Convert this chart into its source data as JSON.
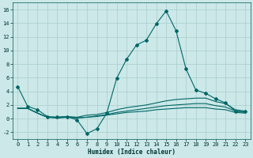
{
  "xlabel": "Humidex (Indice chaleur)",
  "bg_color": "#cce8e8",
  "grid_color": "#aacece",
  "line_color": "#006666",
  "ylim": [
    -3,
    17
  ],
  "xlim": [
    -0.5,
    23.5
  ],
  "yticks": [
    -2,
    0,
    2,
    4,
    6,
    8,
    10,
    12,
    14,
    16
  ],
  "xticks": [
    0,
    1,
    2,
    3,
    4,
    5,
    6,
    7,
    8,
    9,
    10,
    11,
    12,
    13,
    14,
    15,
    16,
    17,
    18,
    19,
    20,
    21,
    22,
    23
  ],
  "series": [
    {
      "x": [
        0,
        1,
        2,
        3,
        4,
        5,
        6,
        7,
        8,
        9,
        10,
        11,
        12,
        13,
        14,
        15,
        16,
        17,
        18,
        19,
        20,
        21,
        22,
        23
      ],
      "y": [
        4.7,
        1.8,
        1.3,
        0.3,
        0.2,
        0.3,
        -0.2,
        -2.2,
        -1.5,
        0.8,
        5.9,
        8.7,
        10.8,
        11.5,
        13.9,
        15.8,
        12.9,
        7.3,
        4.2,
        3.7,
        2.9,
        2.3,
        1.1,
        1.0
      ],
      "marker": true
    },
    {
      "x": [
        0,
        1,
        2,
        3,
        4,
        5,
        6,
        7,
        8,
        9,
        10,
        11,
        12,
        13,
        14,
        15,
        16,
        17,
        18,
        19,
        20,
        21,
        22,
        23
      ],
      "y": [
        1.5,
        1.5,
        0.8,
        0.2,
        0.2,
        0.3,
        0.2,
        0.5,
        0.6,
        0.9,
        1.3,
        1.6,
        1.8,
        2.0,
        2.3,
        2.6,
        2.8,
        2.9,
        3.0,
        3.0,
        2.5,
        2.2,
        1.3,
        1.1
      ],
      "marker": false
    },
    {
      "x": [
        0,
        1,
        2,
        3,
        4,
        5,
        6,
        7,
        8,
        9,
        10,
        11,
        12,
        13,
        14,
        15,
        16,
        17,
        18,
        19,
        20,
        21,
        22,
        23
      ],
      "y": [
        1.5,
        1.5,
        0.8,
        0.2,
        0.1,
        0.2,
        0.1,
        0.2,
        0.4,
        0.6,
        0.9,
        1.1,
        1.3,
        1.5,
        1.7,
        1.9,
        2.0,
        2.1,
        2.2,
        2.2,
        1.9,
        1.7,
        1.1,
        0.9
      ],
      "marker": false
    },
    {
      "x": [
        0,
        1,
        2,
        3,
        4,
        5,
        6,
        7,
        8,
        9,
        10,
        11,
        12,
        13,
        14,
        15,
        16,
        17,
        18,
        19,
        20,
        21,
        22,
        23
      ],
      "y": [
        1.5,
        1.5,
        0.8,
        0.2,
        0.1,
        0.2,
        0.1,
        0.2,
        0.3,
        0.5,
        0.7,
        0.9,
        1.0,
        1.1,
        1.3,
        1.4,
        1.5,
        1.6,
        1.6,
        1.6,
        1.4,
        1.3,
        0.9,
        0.8
      ],
      "marker": false
    }
  ]
}
